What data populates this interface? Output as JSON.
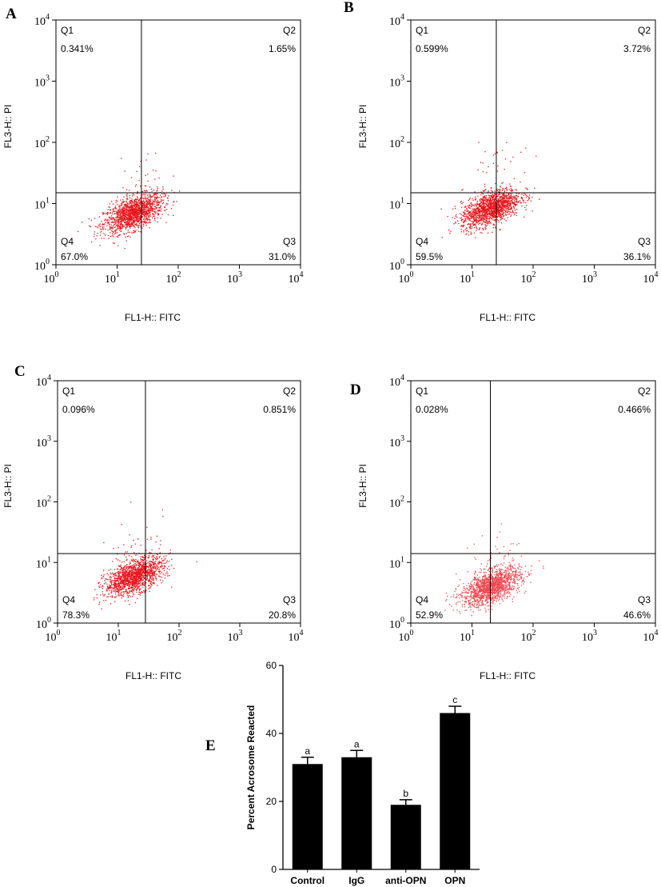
{
  "chart_data": [
    {
      "type": "scatter",
      "panel": "A",
      "xlabel": "FL1-H:: FITC",
      "ylabel": "FL3-H:: PI",
      "xscale": "log",
      "yscale": "log",
      "xlim": [
        1,
        10000
      ],
      "ylim": [
        1,
        10000
      ],
      "x_ticks": [
        "10^0",
        "10^1",
        "10^2",
        "10^3",
        "10^4"
      ],
      "y_ticks": [
        "10^0",
        "10^1",
        "10^2",
        "10^3",
        "10^4"
      ],
      "gate": {
        "x": 25,
        "y": 15
      },
      "quadrants": [
        {
          "label": "Q1",
          "value": "0.341%"
        },
        {
          "label": "Q2",
          "value": "1.65%"
        },
        {
          "label": "Q3",
          "value": "31.0%"
        },
        {
          "label": "Q4",
          "value": "67.0%"
        }
      ],
      "population": {
        "center_x": 18,
        "center_y": 7,
        "color": "#e8141b"
      }
    },
    {
      "type": "scatter",
      "panel": "B",
      "xlabel": "FL1-H:: FITC",
      "ylabel": "FL3-H:: PI",
      "xscale": "log",
      "yscale": "log",
      "xlim": [
        1,
        10000
      ],
      "ylim": [
        1,
        10000
      ],
      "x_ticks": [
        "10^0",
        "10^1",
        "10^2",
        "10^3",
        "10^4"
      ],
      "y_ticks": [
        "10^0",
        "10^1",
        "10^2",
        "10^3",
        "10^4"
      ],
      "gate": {
        "x": 25,
        "y": 15
      },
      "quadrants": [
        {
          "label": "Q1",
          "value": "0.599%"
        },
        {
          "label": "Q2",
          "value": "3.72%"
        },
        {
          "label": "Q3",
          "value": "36.1%"
        },
        {
          "label": "Q4",
          "value": "59.5%"
        }
      ],
      "population": {
        "center_x": 20,
        "center_y": 8.5,
        "color": "#e8141b"
      }
    },
    {
      "type": "scatter",
      "panel": "C",
      "xlabel": "FL1-H:: FITC",
      "ylabel": "FL3-H:: PI",
      "xscale": "log",
      "yscale": "log",
      "xlim": [
        1,
        10000
      ],
      "ylim": [
        1,
        10000
      ],
      "x_ticks": [
        "10^0",
        "10^1",
        "10^2",
        "10^3",
        "10^4"
      ],
      "y_ticks": [
        "10^0",
        "10^1",
        "10^2",
        "10^3",
        "10^4"
      ],
      "gate": {
        "x": 28,
        "y": 14
      },
      "quadrants": [
        {
          "label": "Q1",
          "value": "0.096%"
        },
        {
          "label": "Q2",
          "value": "0.851%"
        },
        {
          "label": "Q3",
          "value": "20.8%"
        },
        {
          "label": "Q4",
          "value": "78.3%"
        }
      ],
      "population": {
        "center_x": 18,
        "center_y": 6,
        "color": "#e8141b"
      }
    },
    {
      "type": "scatter",
      "panel": "D",
      "xlabel": "FL1-H:: FITC",
      "ylabel": "FL3-H:: PI",
      "xscale": "log",
      "yscale": "log",
      "xlim": [
        1,
        10000
      ],
      "ylim": [
        1,
        10000
      ],
      "x_ticks": [
        "10^0",
        "10^1",
        "10^2",
        "10^3",
        "10^4"
      ],
      "y_ticks": [
        "10^0",
        "10^1",
        "10^2",
        "10^3",
        "10^4"
      ],
      "gate": {
        "x": 20,
        "y": 14
      },
      "quadrants": [
        {
          "label": "Q1",
          "value": "0.028%"
        },
        {
          "label": "Q2",
          "value": "0.466%"
        },
        {
          "label": "Q3",
          "value": "46.6%"
        },
        {
          "label": "Q4",
          "value": "52.9%"
        }
      ],
      "population": {
        "center_x": 20,
        "center_y": 4,
        "color": "#f0454d"
      }
    },
    {
      "type": "bar",
      "panel": "E",
      "ylabel": "Percent Acrosome Reacted",
      "categories": [
        "Control",
        "IgG",
        "anti-OPN",
        "OPN"
      ],
      "values": [
        31,
        33,
        19,
        46
      ],
      "errors": [
        2,
        2,
        1.5,
        2
      ],
      "letters": [
        "a",
        "a",
        "b",
        "c"
      ],
      "ylim": [
        0,
        60
      ],
      "y_ticks": [
        0,
        20,
        40,
        60
      ],
      "bar_color": "#000000"
    }
  ]
}
